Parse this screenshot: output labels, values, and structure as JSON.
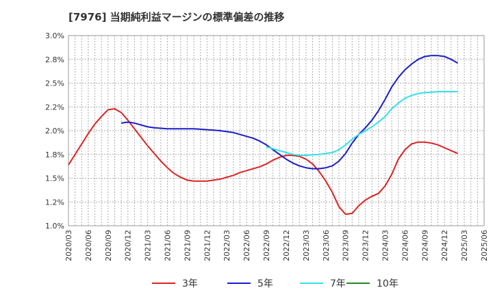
{
  "chart_data": {
    "type": "line",
    "title": "[7976]  当期純利益マージンの標準偏差の推移",
    "xlabel": "",
    "ylabel": "",
    "ylim": [
      1.0,
      3.0
    ],
    "y_ticks": [
      "1.0%",
      "1.2%",
      "1.5%",
      "1.8%",
      "2.0%",
      "2.2%",
      "2.5%",
      "2.8%",
      "3.0%"
    ],
    "y_tick_values": [
      1.0,
      1.25,
      1.5,
      1.75,
      2.0,
      2.25,
      2.5,
      2.75,
      3.0
    ],
    "x_ticks": [
      "2020/03",
      "2020/06",
      "2020/09",
      "2020/12",
      "2021/03",
      "2021/06",
      "2021/09",
      "2021/12",
      "2022/03",
      "2022/06",
      "2022/09",
      "2022/12",
      "2023/03",
      "2023/06",
      "2023/09",
      "2023/12",
      "2024/03",
      "2024/06",
      "2024/09",
      "2024/12",
      "2025/03",
      "2025/06"
    ],
    "grid": true,
    "legend_position": "bottom",
    "series": [
      {
        "name": "3年",
        "color": "#dd2222",
        "start": "2020/03",
        "values": [
          1.64,
          1.75,
          1.86,
          1.97,
          2.07,
          2.15,
          2.22,
          2.23,
          2.19,
          2.11,
          2.02,
          1.93,
          1.84,
          1.76,
          1.68,
          1.61,
          1.55,
          1.51,
          1.48,
          1.47,
          1.47,
          1.47,
          1.48,
          1.49,
          1.51,
          1.53,
          1.56,
          1.58,
          1.6,
          1.62,
          1.65,
          1.69,
          1.72,
          1.74,
          1.74,
          1.73,
          1.7,
          1.65,
          1.57,
          1.47,
          1.35,
          1.2,
          1.12,
          1.13,
          1.21,
          1.27,
          1.31,
          1.34,
          1.42,
          1.54,
          1.7,
          1.8,
          1.86,
          1.88,
          1.88,
          1.87,
          1.85,
          1.82,
          1.79,
          1.76
        ]
      },
      {
        "name": "5年",
        "color": "#1a1acc",
        "start": "2020/03",
        "values": [
          null,
          null,
          null,
          null,
          null,
          null,
          null,
          null,
          2.08,
          2.09,
          2.08,
          2.06,
          2.04,
          2.03,
          2.025,
          2.02,
          2.02,
          2.02,
          2.02,
          2.02,
          2.015,
          2.01,
          2.005,
          2.0,
          1.99,
          1.98,
          1.96,
          1.94,
          1.92,
          1.89,
          1.85,
          1.8,
          1.75,
          1.7,
          1.66,
          1.63,
          1.61,
          1.6,
          1.6,
          1.61,
          1.63,
          1.68,
          1.76,
          1.87,
          1.96,
          2.03,
          2.11,
          2.21,
          2.33,
          2.46,
          2.56,
          2.64,
          2.7,
          2.75,
          2.78,
          2.79,
          2.79,
          2.78,
          2.75,
          2.71
        ]
      },
      {
        "name": "7年",
        "color": "#33e0e8",
        "start": "2020/03",
        "values": [
          null,
          null,
          null,
          null,
          null,
          null,
          null,
          null,
          null,
          null,
          null,
          null,
          null,
          null,
          null,
          null,
          null,
          null,
          null,
          null,
          null,
          null,
          null,
          null,
          null,
          null,
          null,
          null,
          null,
          null,
          1.83,
          1.81,
          1.79,
          1.77,
          1.75,
          1.74,
          1.74,
          1.745,
          1.75,
          1.76,
          1.77,
          1.8,
          1.85,
          1.91,
          1.96,
          2.0,
          2.04,
          2.09,
          2.15,
          2.23,
          2.29,
          2.34,
          2.37,
          2.39,
          2.4,
          2.405,
          2.41,
          2.41,
          2.41,
          2.41
        ]
      },
      {
        "name": "10年",
        "color": "#228822",
        "start": "2020/03",
        "values": []
      }
    ]
  }
}
